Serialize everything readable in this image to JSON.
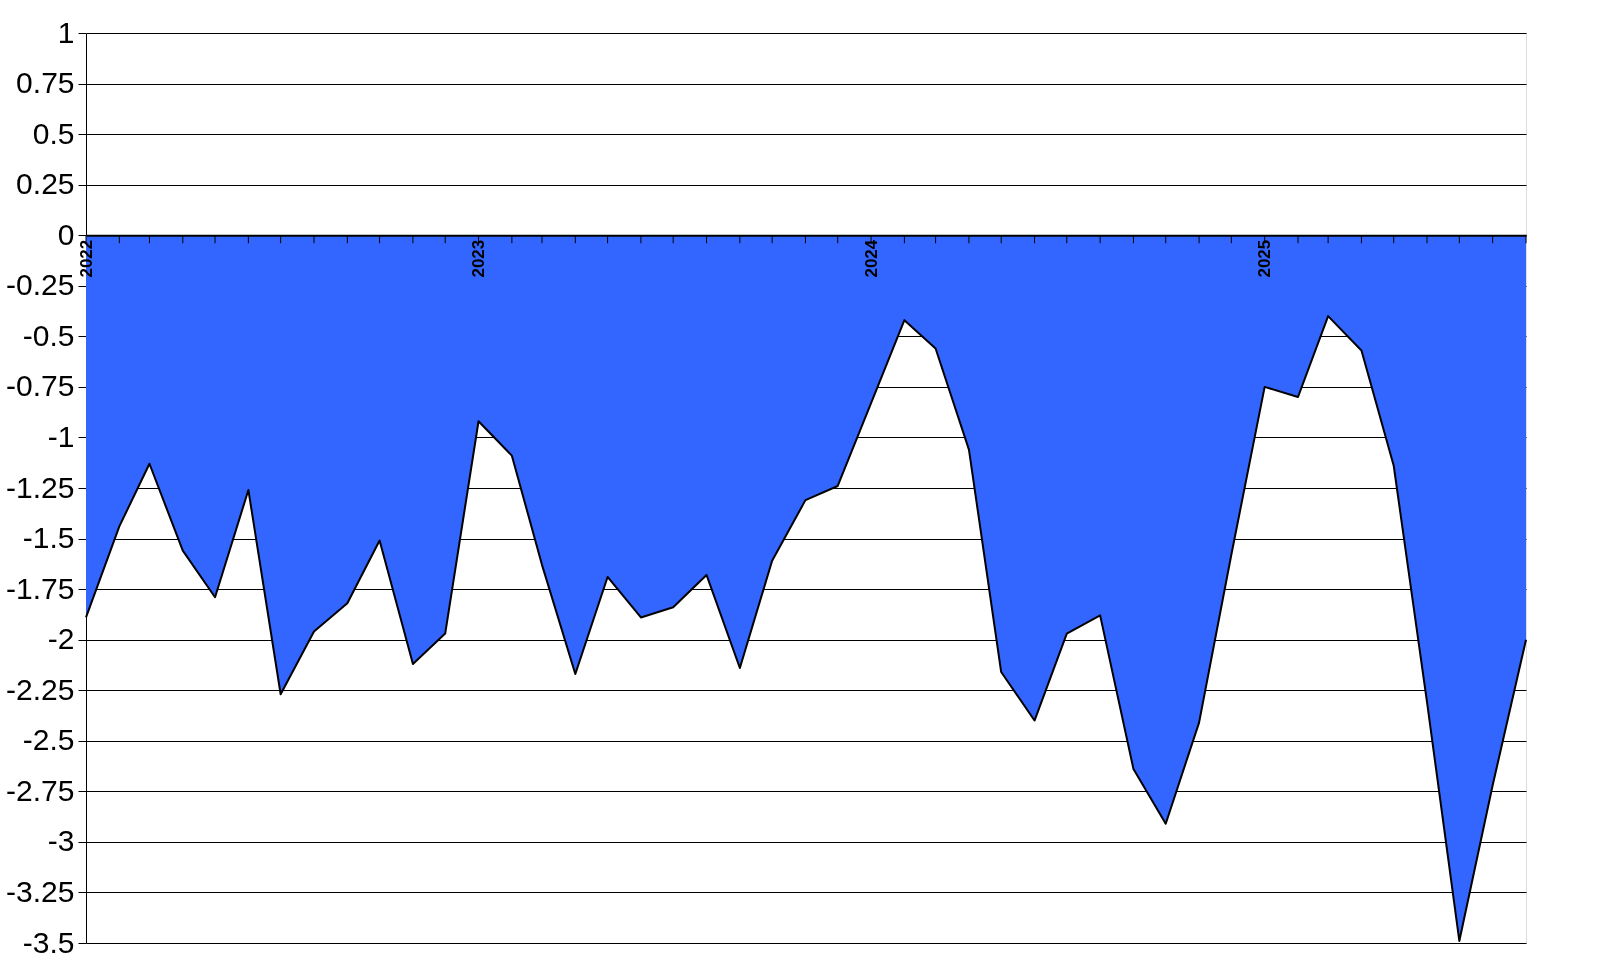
{
  "chart_data": {
    "type": "area",
    "x": [
      "2022-01",
      "2022-02",
      "2022-03",
      "2022-04",
      "2022-05",
      "2022-06",
      "2022-07",
      "2022-08",
      "2022-09",
      "2022-10",
      "2022-11",
      "2022-12",
      "2023-01",
      "2023-02",
      "2023-03",
      "2023-04",
      "2023-05",
      "2023-06",
      "2023-07",
      "2023-08",
      "2023-09",
      "2023-10",
      "2023-11",
      "2023-12",
      "2024-01",
      "2024-02",
      "2024-03",
      "2024-04",
      "2024-05",
      "2024-06",
      "2024-07",
      "2024-08",
      "2024-09",
      "2024-10",
      "2024-11",
      "2024-12",
      "2025-01",
      "2025-02",
      "2025-03",
      "2025-04",
      "2025-05",
      "2025-06",
      "2025-07",
      "2025-08",
      "2025-09"
    ],
    "series": [
      {
        "color": "#3366ff",
        "values": [
          -1.89,
          -1.44,
          -1.13,
          -1.56,
          -1.79,
          -1.26,
          -2.27,
          -1.96,
          -1.82,
          -1.51,
          -2.12,
          -1.97,
          -0.92,
          -1.09,
          -1.63,
          -2.17,
          -1.69,
          -1.89,
          -1.84,
          -1.68,
          -2.14,
          -1.61,
          -1.31,
          -1.24,
          -0.83,
          -0.42,
          -0.56,
          -1.06,
          -2.16,
          -2.4,
          -1.97,
          -1.88,
          -2.64,
          -2.91,
          -2.41,
          -1.58,
          -0.75,
          -0.8,
          -0.4,
          -0.57,
          -1.14,
          -2.31,
          -3.49,
          -2.72,
          -2.0
        ]
      }
    ],
    "xlim": [
      "2022-01",
      "2025-09"
    ],
    "xticks": [
      {
        "value": "2022-01",
        "label": "2022"
      },
      {
        "value": "2022-02",
        "label": null
      },
      {
        "value": "2022-03",
        "label": null
      },
      {
        "value": "2022-04",
        "label": null
      },
      {
        "value": "2022-05",
        "label": null
      },
      {
        "value": "2022-06",
        "label": null
      },
      {
        "value": "2022-07",
        "label": null
      },
      {
        "value": "2022-08",
        "label": null
      },
      {
        "value": "2022-09",
        "label": null
      },
      {
        "value": "2022-10",
        "label": null
      },
      {
        "value": "2022-11",
        "label": null
      },
      {
        "value": "2022-12",
        "label": null
      },
      {
        "value": "2023-01",
        "label": "2023"
      },
      {
        "value": "2023-02",
        "label": null
      },
      {
        "value": "2023-03",
        "label": null
      },
      {
        "value": "2023-04",
        "label": null
      },
      {
        "value": "2023-05",
        "label": null
      },
      {
        "value": "2023-06",
        "label": null
      },
      {
        "value": "2023-07",
        "label": null
      },
      {
        "value": "2023-08",
        "label": null
      },
      {
        "value": "2023-09",
        "label": null
      },
      {
        "value": "2023-10",
        "label": null
      },
      {
        "value": "2023-11",
        "label": null
      },
      {
        "value": "2023-12",
        "label": null
      },
      {
        "value": "2024-01",
        "label": "2024"
      },
      {
        "value": "2024-02",
        "label": null
      },
      {
        "value": "2024-03",
        "label": null
      },
      {
        "value": "2024-04",
        "label": null
      },
      {
        "value": "2024-05",
        "label": null
      },
      {
        "value": "2024-06",
        "label": null
      },
      {
        "value": "2024-07",
        "label": null
      },
      {
        "value": "2024-08",
        "label": null
      },
      {
        "value": "2024-09",
        "label": null
      },
      {
        "value": "2024-10",
        "label": null
      },
      {
        "value": "2024-11",
        "label": null
      },
      {
        "value": "2024-12",
        "label": null
      },
      {
        "value": "2025-01",
        "label": "2025"
      },
      {
        "value": "2025-02",
        "label": null
      },
      {
        "value": "2025-03",
        "label": null
      },
      {
        "value": "2025-04",
        "label": null
      },
      {
        "value": "2025-05",
        "label": null
      },
      {
        "value": "2025-06",
        "label": null
      },
      {
        "value": "2025-07",
        "label": null
      },
      {
        "value": "2025-08",
        "label": null
      },
      {
        "value": "2025-09",
        "label": null
      }
    ],
    "ylim": [
      -3.5,
      1
    ],
    "yticks": [
      1,
      0.75,
      0.5,
      0.25,
      0,
      -0.25,
      -0.5,
      -0.75,
      -1,
      -1.25,
      -1.5,
      -1.75,
      -2,
      -2.25,
      -2.5,
      -2.75,
      -3,
      -3.25,
      -3.5
    ],
    "grid": "y",
    "marker": "none",
    "line_style": "solid"
  }
}
